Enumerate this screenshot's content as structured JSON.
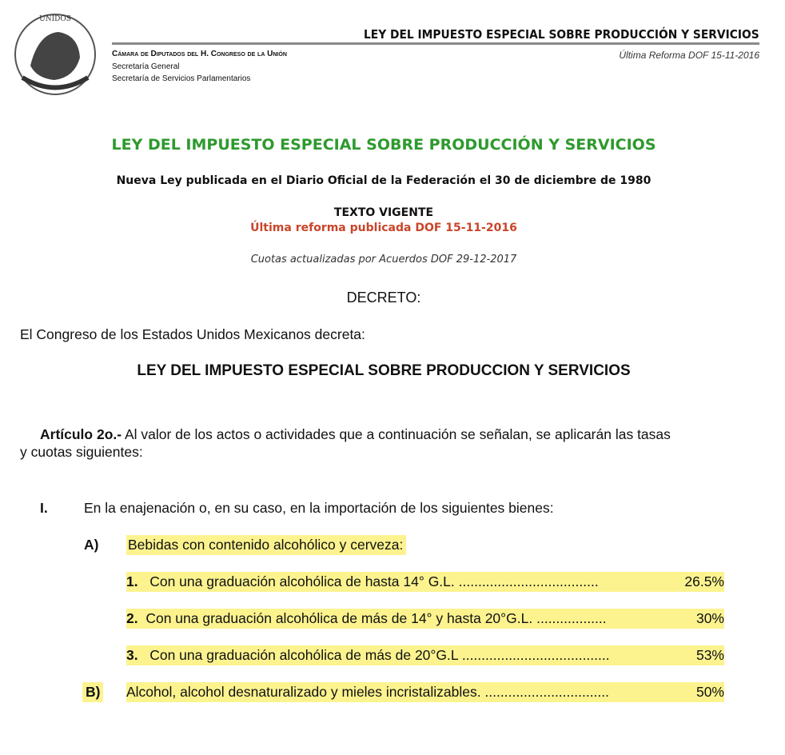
{
  "header": {
    "seal_text": "ESTADOS UNIDOS MEXICANOS",
    "title": "LEY DEL IMPUESTO ESPECIAL SOBRE PRODUCCIÓN Y SERVICIOS",
    "chamber": "Cámara de Diputados del H. Congreso de la Unión",
    "sec1": "Secretaría General",
    "sec2": "Secretaría de Servicios Parlamentarios",
    "last_reform": "Última Reforma DOF 15-11-2016"
  },
  "doc": {
    "title": "LEY DEL IMPUESTO ESPECIAL SOBRE PRODUCCIÓN Y SERVICIOS",
    "published": "Nueva Ley publicada en el Diario Oficial de la Federación el 30 de diciembre de 1980",
    "texto_vigente": "TEXTO VIGENTE",
    "ultima_reforma": "Última reforma publicada DOF 15-11-2016",
    "cuotas": "Cuotas actualizadas por Acuerdos DOF 29-12-2017",
    "decreto": "DECRETO:",
    "congreso": "El Congreso de los Estados Unidos Mexicanos decreta:",
    "ley_title": "LEY DEL IMPUESTO ESPECIAL SOBRE PRODUCCION Y SERVICIOS",
    "art_label": "Artículo 2o.-",
    "art_text1": " Al valor de los actos o actividades que a continuación se señalan, se aplicarán las tasas",
    "art_text2": "y cuotas siguientes:",
    "frac_num": "I.",
    "frac_text": "En la enajenación o, en su caso, en la importación de los siguientes bienes:",
    "a_label": "A)",
    "a_text": "Bebidas con contenido alcohólico y cerveza:",
    "items": [
      {
        "num": "1.",
        "text": "Con una graduación alcohólica de hasta 14° G.L. ",
        "dots": "....................................",
        "rate": "26.5%"
      },
      {
        "num": "2.",
        "text": "Con una graduación alcohólica de más de 14° y hasta 20°G.L. ",
        "dots": "..................",
        "rate": " 30%"
      },
      {
        "num": "3.",
        "text": "Con una graduación alcohólica de más de 20°G.L ",
        "dots": "......................................",
        "rate": "53%"
      }
    ],
    "b_label": "B)",
    "b_text": "Alcohol, alcohol desnaturalizado y mieles incristalizables. ",
    "b_dots": "................................",
    "b_rate": " 50%"
  },
  "colors": {
    "title_green": "#2d9a2d",
    "reform_red": "#c8452a",
    "highlight": "#fcf38f"
  }
}
